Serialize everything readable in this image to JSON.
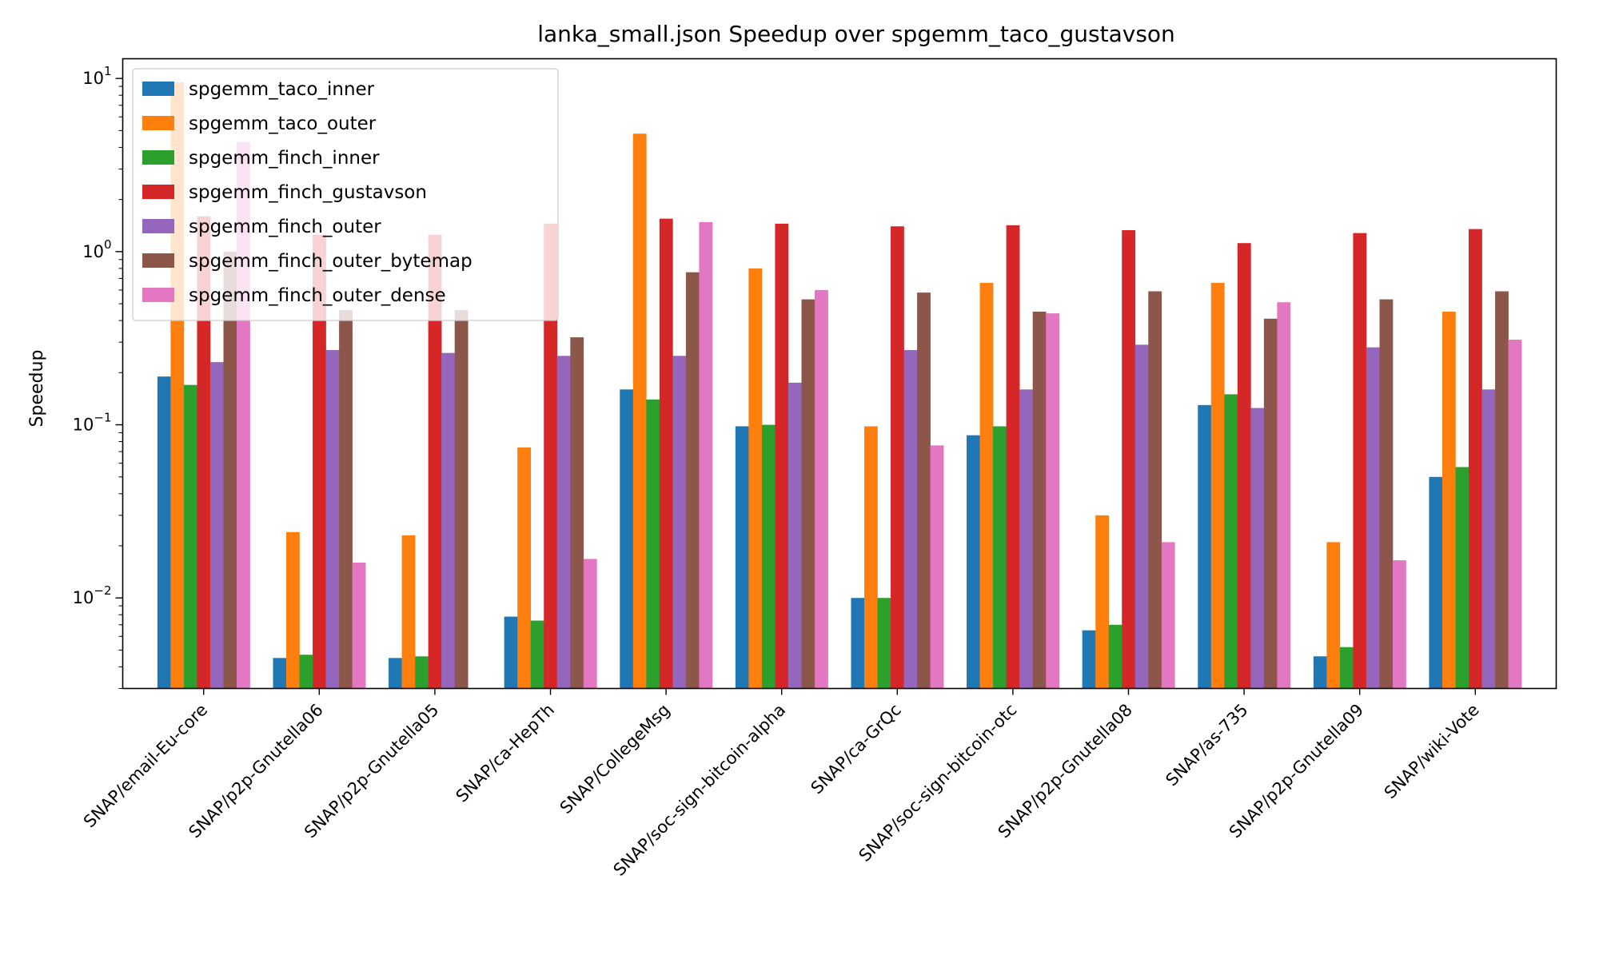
{
  "chart_data": {
    "type": "bar",
    "title": "lanka_small.json Speedup over spgemm_taco_gustavson",
    "xlabel": "",
    "ylabel": "Speedup",
    "yscale": "log",
    "ylim": [
      0.003,
      13
    ],
    "yticks": [
      {
        "value": 0.01,
        "base": "10",
        "exp": "−2"
      },
      {
        "value": 0.1,
        "base": "10",
        "exp": "−1"
      },
      {
        "value": 1,
        "base": "10",
        "exp": "0"
      },
      {
        "value": 10,
        "base": "10",
        "exp": "1"
      }
    ],
    "grid": false,
    "legend_position": "top-left",
    "categories": [
      "SNAP/email-Eu-core",
      "SNAP/p2p-Gnutella06",
      "SNAP/p2p-Gnutella05",
      "SNAP/ca-HepTh",
      "SNAP/CollegeMsg",
      "SNAP/soc-sign-bitcoin-alpha",
      "SNAP/ca-GrQc",
      "SNAP/soc-sign-bitcoin-otc",
      "SNAP/p2p-Gnutella08",
      "SNAP/as-735",
      "SNAP/p2p-Gnutella09",
      "SNAP/wiki-Vote"
    ],
    "series": [
      {
        "name": "spgemm_taco_inner",
        "color": "#1f77b4",
        "values": [
          0.19,
          0.0045,
          0.0045,
          0.0078,
          0.16,
          0.098,
          0.01,
          0.087,
          0.0065,
          0.13,
          0.0046,
          0.05
        ]
      },
      {
        "name": "spgemm_taco_outer",
        "color": "#ff7f0e",
        "values": [
          9.5,
          0.024,
          0.023,
          0.074,
          4.8,
          0.8,
          0.098,
          0.66,
          0.03,
          0.66,
          0.021,
          0.45
        ]
      },
      {
        "name": "spgemm_finch_inner",
        "color": "#2ca02c",
        "values": [
          0.17,
          0.0047,
          0.0046,
          0.0074,
          0.14,
          0.1,
          0.01,
          0.098,
          0.007,
          0.15,
          0.0052,
          0.057
        ]
      },
      {
        "name": "spgemm_finch_gustavson",
        "color": "#d62728",
        "values": [
          1.6,
          1.25,
          1.25,
          1.45,
          1.55,
          1.45,
          1.4,
          1.42,
          1.33,
          1.12,
          1.28,
          1.35
        ]
      },
      {
        "name": "spgemm_finch_outer",
        "color": "#9467bd",
        "values": [
          0.23,
          0.27,
          0.26,
          0.25,
          0.25,
          0.175,
          0.27,
          0.16,
          0.29,
          0.125,
          0.28,
          0.16
        ]
      },
      {
        "name": "spgemm_finch_outer_bytemap",
        "color": "#8c564b",
        "values": [
          1.0,
          0.46,
          0.46,
          0.32,
          0.76,
          0.53,
          0.58,
          0.45,
          0.59,
          0.41,
          0.53,
          0.59
        ]
      },
      {
        "name": "spgemm_finch_outer_dense",
        "color": "#e377c2",
        "values": [
          4.3,
          0.016,
          null,
          0.0168,
          1.48,
          0.6,
          0.076,
          0.44,
          0.021,
          0.51,
          0.0165,
          0.31
        ]
      }
    ]
  }
}
